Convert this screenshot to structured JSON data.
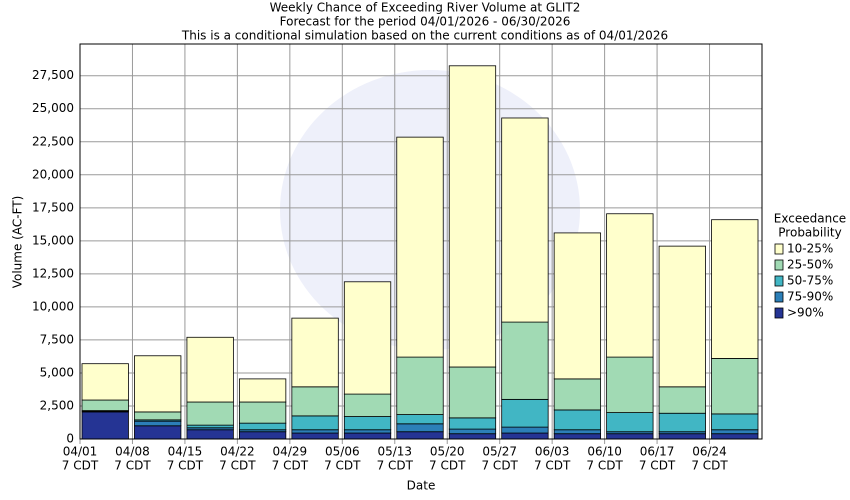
{
  "chart_data": {
    "type": "stacked_bar",
    "title": "Weekly Chance of Exceeding River Volume at GLIT2",
    "subtitle": "Forecast for the period 04/01/2026 - 06/30/2026",
    "subtitle2": "This is a conditional simulation based on the current conditions as of 04/01/2026",
    "x_label": "Date",
    "y_label": "Volume (AC-FT)",
    "legend_title": [
      "Exceedance",
      "Probability"
    ],
    "categories": [
      [
        "04/01",
        "7 CDT"
      ],
      [
        "04/08",
        "7 CDT"
      ],
      [
        "04/15",
        "7 CDT"
      ],
      [
        "04/22",
        "7 CDT"
      ],
      [
        "04/29",
        "7 CDT"
      ],
      [
        "05/06",
        "7 CDT"
      ],
      [
        "05/13",
        "7 CDT"
      ],
      [
        "05/20",
        "7 CDT"
      ],
      [
        "05/27",
        "7 CDT"
      ],
      [
        "06/03",
        "7 CDT"
      ],
      [
        "06/10",
        "7 CDT"
      ],
      [
        "06/17",
        "7 CDT"
      ],
      [
        "06/24",
        "7 CDT"
      ]
    ],
    "series": [
      {
        "name": ">90%",
        "color": "#253494",
        "values": [
          2050,
          1000,
          700,
          550,
          450,
          450,
          550,
          400,
          450,
          400,
          400,
          400,
          400
        ]
      },
      {
        "name": "75-90%",
        "color": "#2c7fb8",
        "values": [
          50,
          350,
          150,
          150,
          250,
          250,
          600,
          350,
          450,
          300,
          150,
          150,
          300
        ]
      },
      {
        "name": "50-75%",
        "color": "#41b6c4",
        "values": [
          50,
          100,
          200,
          500,
          1050,
          1000,
          700,
          850,
          2100,
          1500,
          1450,
          1400,
          1200
        ]
      },
      {
        "name": "25-50%",
        "color": "#a1dab4",
        "values": [
          800,
          600,
          1750,
          1600,
          2200,
          1700,
          4350,
          3850,
          5850,
          2350,
          4200,
          2000,
          4200
        ]
      },
      {
        "name": "10-25%",
        "color": "#ffffcc",
        "values": [
          2750,
          4250,
          4900,
          1750,
          5200,
          8500,
          16650,
          22800,
          15450,
          11050,
          10850,
          10650,
          10500
        ]
      }
    ],
    "ylim": [
      0,
      29900
    ],
    "yticks": [
      0,
      {
        "value": 2500,
        "label": "2,500"
      },
      {
        "value": 5000,
        "label": "5,000"
      },
      {
        "value": 7500,
        "label": "7,500"
      },
      {
        "value": 10000,
        "label": "10,000"
      },
      {
        "value": 12500,
        "label": "12,500"
      },
      {
        "value": 15000,
        "label": "15,000"
      },
      {
        "value": 17500,
        "label": "17,500"
      },
      {
        "value": 20000,
        "label": "20,000"
      },
      {
        "value": 22500,
        "label": "22,500"
      },
      {
        "value": 25000,
        "label": "25,000"
      },
      {
        "value": 27500,
        "label": "27,500"
      }
    ],
    "grid": true
  }
}
